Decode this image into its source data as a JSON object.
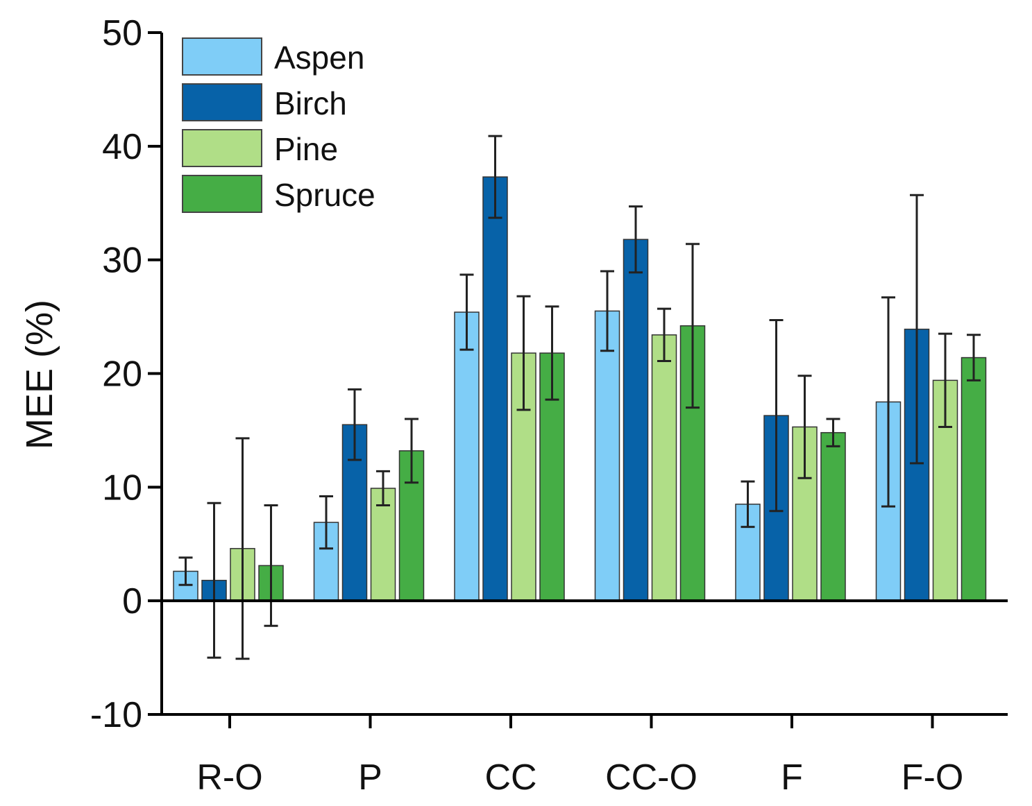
{
  "chart_data": {
    "type": "bar",
    "title": "",
    "xlabel": "",
    "ylabel": "MEE (%)",
    "ylim": [
      -10,
      50
    ],
    "yticks": [
      -10,
      0,
      10,
      20,
      30,
      40,
      50
    ],
    "ytick_labels": [
      "-10",
      "0",
      "10",
      "20",
      "30",
      "40",
      "50"
    ],
    "categories": [
      "R-O",
      "P",
      "CC",
      "CC-O",
      "F",
      "F-O"
    ],
    "legend_position": "top-left",
    "series": [
      {
        "name": "Aspen",
        "color": "#7fcdf7",
        "values": [
          2.6,
          6.9,
          25.4,
          25.5,
          8.5,
          17.5
        ],
        "errors": [
          1.2,
          2.3,
          3.3,
          3.5,
          2.0,
          9.2
        ]
      },
      {
        "name": "Birch",
        "color": "#0762a8",
        "values": [
          1.8,
          15.5,
          37.3,
          31.8,
          16.3,
          23.9
        ],
        "errors": [
          6.8,
          3.1,
          3.6,
          2.9,
          8.4,
          11.8
        ]
      },
      {
        "name": "Pine",
        "color": "#b0de87",
        "values": [
          4.6,
          9.9,
          21.8,
          23.4,
          15.3,
          19.4
        ],
        "errors": [
          9.7,
          1.5,
          5.0,
          2.3,
          4.5,
          4.1
        ]
      },
      {
        "name": "Spruce",
        "color": "#45ad45",
        "values": [
          3.1,
          13.2,
          21.8,
          24.2,
          14.8,
          21.4
        ],
        "errors": [
          5.3,
          2.8,
          4.1,
          7.2,
          1.2,
          2.0
        ]
      }
    ]
  }
}
